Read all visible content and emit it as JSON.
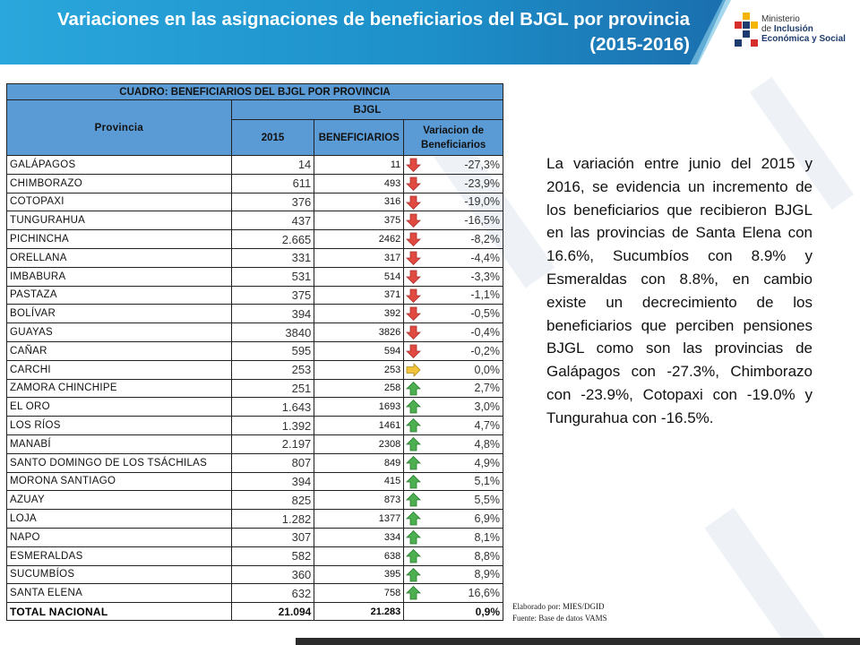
{
  "title": "Variaciones en las asignaciones de beneficiarios del BJGL por provincia (2015-2016)",
  "logo": {
    "line1": "Ministerio",
    "line2_prefix": "de ",
    "line2_bold": "Inclusión",
    "line3": "Económica y Social"
  },
  "table": {
    "caption": "CUADRO: BENEFICIARIOS DEL BJGL POR PROVINCIA",
    "col_provincia": "Provincia",
    "group_header": "BJGL",
    "col_2015": "2015",
    "col_beneficiarios": "BENEFICIARIOS",
    "col_variacion": "Variacion de Beneficiarios",
    "rows": [
      {
        "provincia": "GALÁPAGOS",
        "y2015": "14",
        "beneficiarios": "11",
        "variacion": "-27,3%",
        "trend": "down"
      },
      {
        "provincia": "CHIMBORAZO",
        "y2015": "611",
        "beneficiarios": "493",
        "variacion": "-23,9%",
        "trend": "down"
      },
      {
        "provincia": "COTOPAXI",
        "y2015": "376",
        "beneficiarios": "316",
        "variacion": "-19,0%",
        "trend": "down"
      },
      {
        "provincia": "TUNGURAHUA",
        "y2015": "437",
        "beneficiarios": "375",
        "variacion": "-16,5%",
        "trend": "down"
      },
      {
        "provincia": "PICHINCHA",
        "y2015": "2.665",
        "beneficiarios": "2462",
        "variacion": "-8,2%",
        "trend": "down"
      },
      {
        "provincia": "ORELLANA",
        "y2015": "331",
        "beneficiarios": "317",
        "variacion": "-4,4%",
        "trend": "down"
      },
      {
        "provincia": "IMBABURA",
        "y2015": "531",
        "beneficiarios": "514",
        "variacion": "-3,3%",
        "trend": "down"
      },
      {
        "provincia": "PASTAZA",
        "y2015": "375",
        "beneficiarios": "371",
        "variacion": "-1,1%",
        "trend": "down"
      },
      {
        "provincia": "BOLÍVAR",
        "y2015": "394",
        "beneficiarios": "392",
        "variacion": "-0,5%",
        "trend": "down"
      },
      {
        "provincia": "GUAYAS",
        "y2015": "3840",
        "beneficiarios": "3826",
        "variacion": "-0,4%",
        "trend": "down"
      },
      {
        "provincia": "CAÑAR",
        "y2015": "595",
        "beneficiarios": "594",
        "variacion": "-0,2%",
        "trend": "down"
      },
      {
        "provincia": "CARCHI",
        "y2015": "253",
        "beneficiarios": "253",
        "variacion": "0,0%",
        "trend": "flat"
      },
      {
        "provincia": "ZAMORA CHINCHIPE",
        "y2015": "251",
        "beneficiarios": "258",
        "variacion": "2,7%",
        "trend": "up"
      },
      {
        "provincia": "EL ORO",
        "y2015": "1.643",
        "beneficiarios": "1693",
        "variacion": "3,0%",
        "trend": "up"
      },
      {
        "provincia": "LOS RÍOS",
        "y2015": "1.392",
        "beneficiarios": "1461",
        "variacion": "4,7%",
        "trend": "up"
      },
      {
        "provincia": "MANABÍ",
        "y2015": "2.197",
        "beneficiarios": "2308",
        "variacion": "4,8%",
        "trend": "up"
      },
      {
        "provincia": "SANTO DOMINGO DE LOS TSÁCHILAS",
        "y2015": "807",
        "beneficiarios": "849",
        "variacion": "4,9%",
        "trend": "up"
      },
      {
        "provincia": "MORONA SANTIAGO",
        "y2015": "394",
        "beneficiarios": "415",
        "variacion": "5,1%",
        "trend": "up"
      },
      {
        "provincia": "AZUAY",
        "y2015": "825",
        "beneficiarios": "873",
        "variacion": "5,5%",
        "trend": "up"
      },
      {
        "provincia": "LOJA",
        "y2015": "1.282",
        "beneficiarios": "1377",
        "variacion": "6,9%",
        "trend": "up"
      },
      {
        "provincia": "NAPO",
        "y2015": "307",
        "beneficiarios": "334",
        "variacion": "8,1%",
        "trend": "up"
      },
      {
        "provincia": "ESMERALDAS",
        "y2015": "582",
        "beneficiarios": "638",
        "variacion": "8,8%",
        "trend": "up"
      },
      {
        "provincia": "SUCUMBÍOS",
        "y2015": "360",
        "beneficiarios": "395",
        "variacion": "8,9%",
        "trend": "up"
      },
      {
        "provincia": "SANTA ELENA",
        "y2015": "632",
        "beneficiarios": "758",
        "variacion": "16,6%",
        "trend": "up"
      }
    ],
    "total": {
      "provincia": "TOTAL NACIONAL",
      "y2015": "21.094",
      "beneficiarios": "21.283",
      "variacion": "0,9%"
    }
  },
  "notes": {
    "elaborado": "Elaborado por: MIES/DGID",
    "fuente": "Fuente: Base de datos VAMS"
  },
  "paragraph": "La variación entre junio del 2015 y 2016, se evidencia un incremento de los beneficiarios que recibieron BJGL en las provincias de Santa Elena con 16.6%, Sucumbíos con 8.9% y Esmeraldas con 8.8%, en cambio existe un decrecimiento de los beneficiarios que perciben pensiones BJGL como son las provincias de  Galápagos con -27.3%, Chimborazo con -23.9%, Cotopaxi con -19.0% y Tungurahua con -16.5%.",
  "colors": {
    "header_blue": "#2aa7dc",
    "table_header": "#5b9bd5",
    "arrow_down": "#e04a3f",
    "arrow_up": "#4caf50",
    "arrow_flat": "#f2c23a"
  }
}
